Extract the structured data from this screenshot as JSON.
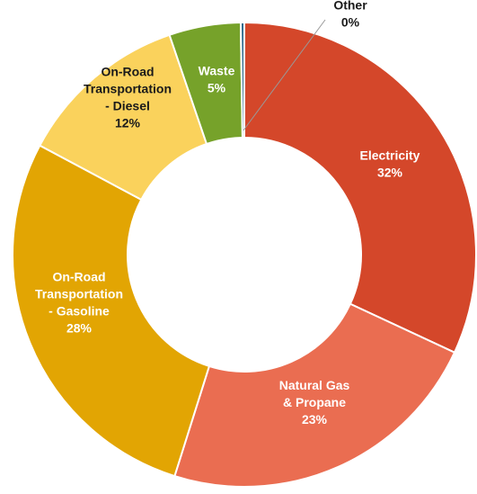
{
  "chart_data": {
    "type": "pie",
    "title": "",
    "legend": "none",
    "slices": [
      {
        "label_lines": [
          "Electricity"
        ],
        "percent_label": "32%",
        "value": 32,
        "color": "#d4472a"
      },
      {
        "label_lines": [
          "Natural Gas",
          "& Propane"
        ],
        "percent_label": "23%",
        "value": 23,
        "color": "#ea6d51"
      },
      {
        "label_lines": [
          "On-Road",
          "Transportation",
          "- Gasoline"
        ],
        "percent_label": "28%",
        "value": 28,
        "color": "#e2a503"
      },
      {
        "label_lines": [
          "On-Road",
          "Transportation",
          "- Diesel"
        ],
        "percent_label": "12%",
        "value": 12,
        "color": "#fad25c"
      },
      {
        "label_lines": [
          "Waste"
        ],
        "percent_label": "5%",
        "value": 5,
        "color": "#76a22a"
      },
      {
        "label_lines": [
          "Other"
        ],
        "percent_label": "0%",
        "value": 0.25,
        "color": "#2e6b8e"
      }
    ]
  }
}
